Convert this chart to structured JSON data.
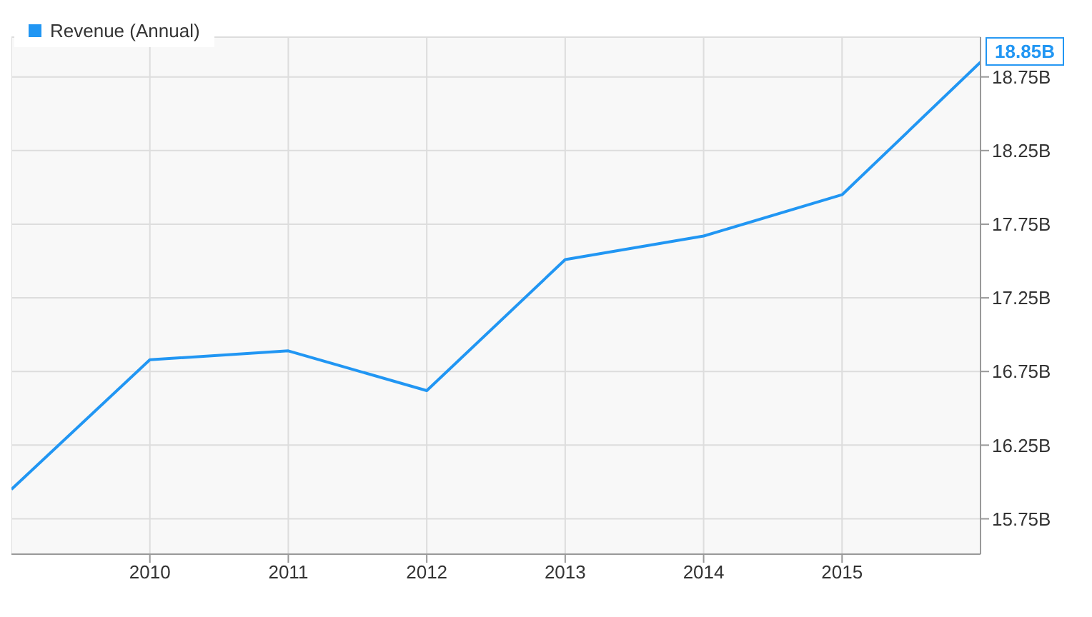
{
  "chart_data": {
    "type": "line",
    "x": [
      2009,
      2010,
      2011,
      2012,
      2013,
      2014,
      2015,
      2016
    ],
    "series": [
      {
        "name": "Revenue (Annual)",
        "color": "#2196f3",
        "values": [
          15.95,
          16.83,
          16.89,
          16.62,
          17.51,
          17.67,
          17.95,
          18.85
        ]
      }
    ],
    "xlim": [
      2009,
      2016
    ],
    "xticks": [
      2010,
      2011,
      2012,
      2013,
      2014,
      2015
    ],
    "ylim": [
      15.51,
      19.02
    ],
    "yticks": [
      {
        "value": 15.75,
        "label": "15.75B"
      },
      {
        "value": 16.25,
        "label": "16.25B"
      },
      {
        "value": 16.75,
        "label": "16.75B"
      },
      {
        "value": 17.25,
        "label": "17.25B"
      },
      {
        "value": 17.75,
        "label": "17.75B"
      },
      {
        "value": 18.25,
        "label": "18.25B"
      },
      {
        "value": 18.75,
        "label": "18.75B"
      }
    ],
    "annotations": [
      {
        "text": "18.85B",
        "x": 2016,
        "y": 18.85
      }
    ],
    "grid": true,
    "legend": "top left",
    "marker": "none",
    "line_style": "solid"
  }
}
